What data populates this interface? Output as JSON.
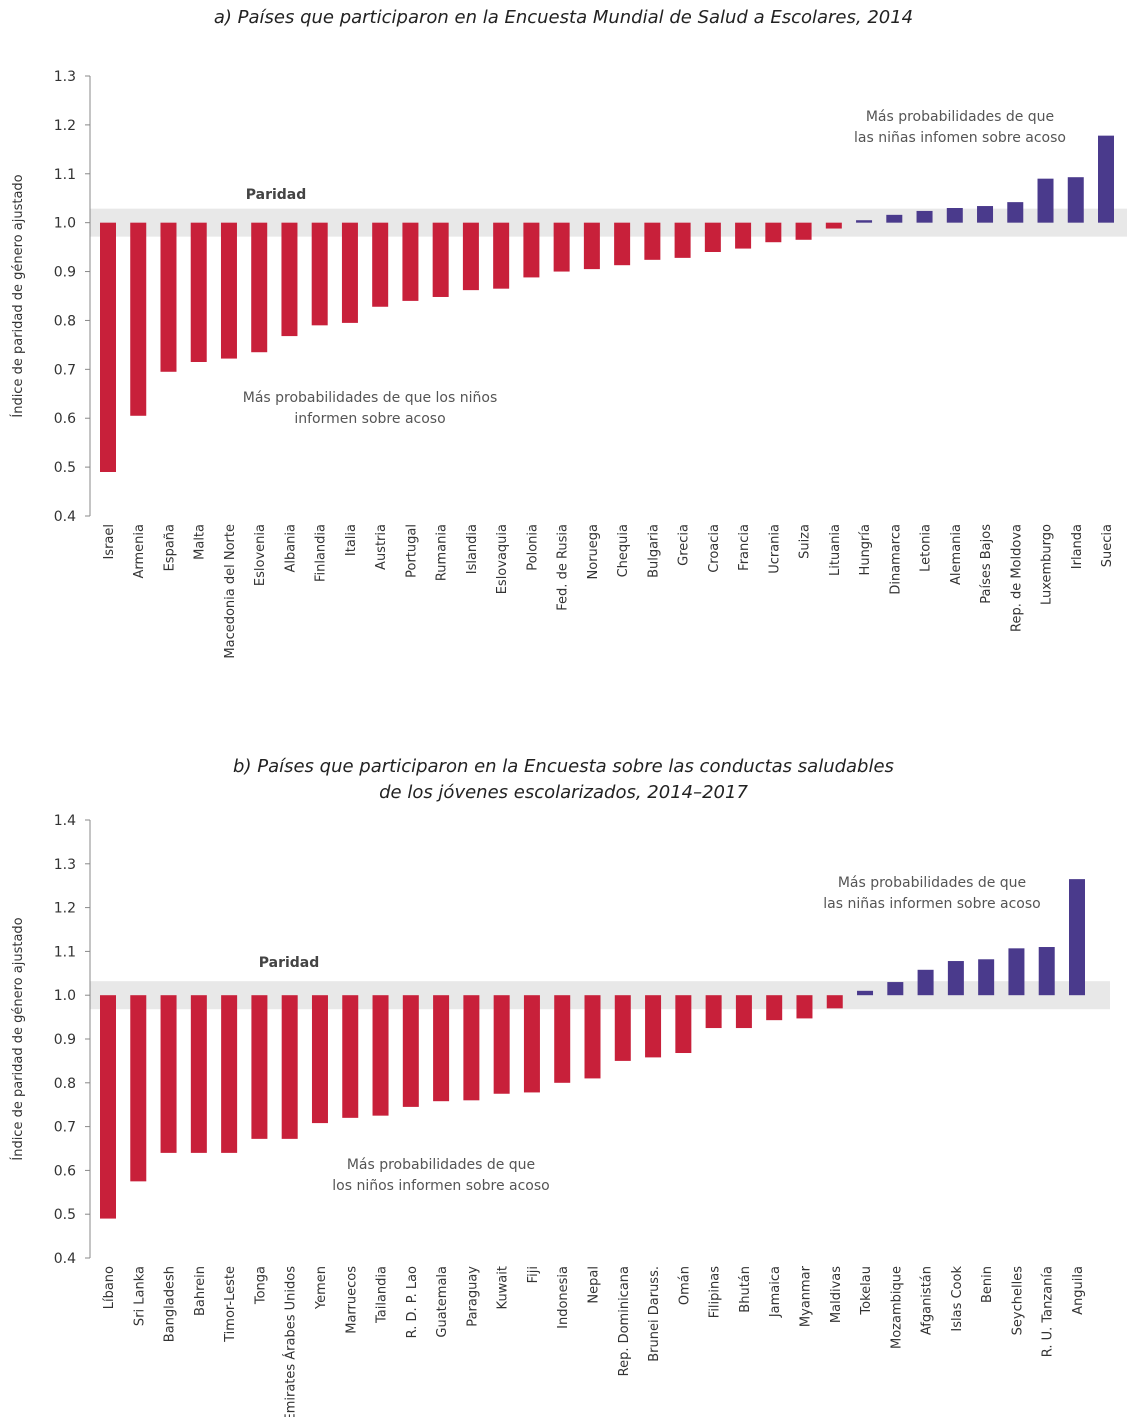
{
  "chart_data": [
    {
      "type": "bar",
      "title": "a) Países que participaron en la Encuesta Mundial de Salud a Escolares, 2014",
      "ylabel": "Índice de paridad de género ajustado",
      "ylim": [
        0.4,
        1.3
      ],
      "yticks": [
        "0.4",
        "0.5",
        "0.6",
        "0.7",
        "0.8",
        "0.9",
        "1.0",
        "1.1",
        "1.2",
        "1.3"
      ],
      "baseline": 1.0,
      "categories": [
        "Israel",
        "Armenia",
        "España",
        "Malta",
        "Macedonia del Norte",
        "Eslovenia",
        "Albania",
        "Finlandia",
        "Italia",
        "Austria",
        "Portugal",
        "Rumania",
        "Islandia",
        "Eslovaquia",
        "Polonia",
        "Fed. de Rusia",
        "Noruega",
        "Chequia",
        "Bulgaria",
        "Grecia",
        "Croacia",
        "Francia",
        "Ucrania",
        "Suiza",
        "Lituania",
        "Hungría",
        "Dinamarca",
        "Letonia",
        "Alemania",
        "Países Bajos",
        "Rep. de Moldova",
        "Luxemburgo",
        "Irlanda",
        "Suecia"
      ],
      "values": [
        0.49,
        0.605,
        0.695,
        0.715,
        0.722,
        0.735,
        0.768,
        0.79,
        0.795,
        0.828,
        0.84,
        0.848,
        0.862,
        0.865,
        0.888,
        0.9,
        0.905,
        0.913,
        0.924,
        0.928,
        0.94,
        0.947,
        0.96,
        0.965,
        0.988,
        1.005,
        1.016,
        1.024,
        1.03,
        1.034,
        1.042,
        1.09,
        1.093,
        1.178
      ],
      "parity_label": "Paridad",
      "note_boys": [
        "Más probabilidades de que los niños",
        "informen sobre acoso"
      ],
      "note_girls": [
        "Más probabilidades de que",
        "las niñas infomen sobre acoso"
      ],
      "colors": {
        "below": "#c8203a",
        "above": "#4a3a8c",
        "band": "#e8e8e8"
      }
    },
    {
      "type": "bar",
      "title": [
        "b) Países que participaron en la Encuesta sobre las conductas saludables",
        "de los jóvenes escolarizados, 2014–2017"
      ],
      "ylabel": "Índice de paridad de género ajustado",
      "ylim": [
        0.4,
        1.4
      ],
      "yticks": [
        "0.4",
        "0.5",
        "0.6",
        "0.7",
        "0.8",
        "0.9",
        "1.0",
        "1.1",
        "1.2",
        "1.3",
        "1.4"
      ],
      "baseline": 1.0,
      "categories": [
        "Líbano",
        "Sri Lanka",
        "Bangladesh",
        "Bahrein",
        "Timor-Leste",
        "Tonga",
        "Emirates Árabes Unidos",
        "Yemen",
        "Marruecos",
        "Tailandia",
        "R. D. P. Lao",
        "Guatemala",
        "Paraguay",
        "Kuwait",
        "Fiji",
        "Indonesia",
        "Nepal",
        "Rep. Dominicana",
        "Brunei Daruss.",
        "Omán",
        "Filipinas",
        "Bhután",
        "Jamaica",
        "Myanmar",
        "Maldivas",
        "Tokelau",
        "Mozambique",
        "Afganistán",
        "Islas Cook",
        "Benin",
        "Seychelles",
        "R. U. Tanzanía",
        "Anguila"
      ],
      "values": [
        0.49,
        0.575,
        0.64,
        0.64,
        0.64,
        0.672,
        0.672,
        0.708,
        0.72,
        0.725,
        0.745,
        0.758,
        0.76,
        0.775,
        0.778,
        0.8,
        0.81,
        0.85,
        0.858,
        0.868,
        0.925,
        0.925,
        0.943,
        0.947,
        0.97,
        1.01,
        1.03,
        1.058,
        1.078,
        1.082,
        1.107,
        1.11,
        1.265
      ],
      "parity_label": "Paridad",
      "note_boys": [
        "Más probabilidades de que",
        "los niños informen sobre acoso"
      ],
      "note_girls": [
        "Más probabilidades de que",
        "las niñas informen sobre acoso"
      ],
      "colors": {
        "below": "#c8203a",
        "above": "#4a3a8c",
        "band": "#e8e8e8"
      }
    }
  ]
}
